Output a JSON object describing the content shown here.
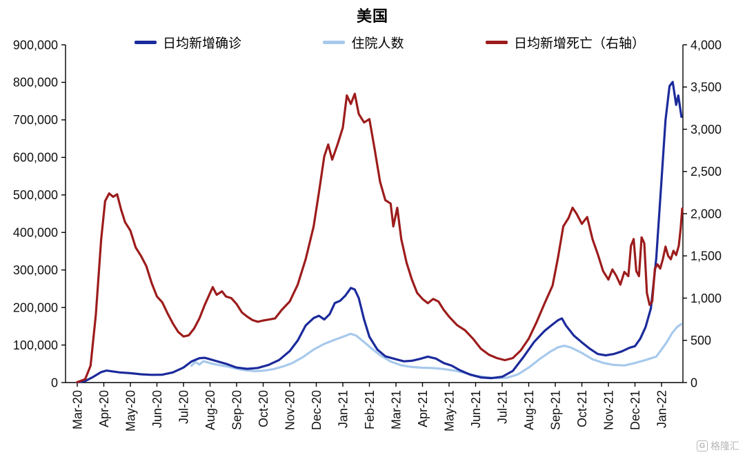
{
  "watermark": {
    "icon_letter": "G",
    "text": "格隆汇"
  },
  "chart_data": {
    "type": "line",
    "title": "美国",
    "grid": false,
    "legend_position": "top",
    "x_ticks": [
      "Mar-20",
      "Apr-20",
      "May-20",
      "Jun-20",
      "Jul-20",
      "Aug-20",
      "Sep-20",
      "Oct-20",
      "Nov-20",
      "Dec-20",
      "Jan-21",
      "Feb-21",
      "Mar-21",
      "Apr-21",
      "May-21",
      "Jun-21",
      "Jul-21",
      "Aug-21",
      "Sep-21",
      "Oct-21",
      "Nov-21",
      "Dec-21",
      "Jan-22"
    ],
    "left_axis": {
      "min": 0,
      "max": 900000,
      "step": 100000
    },
    "right_axis": {
      "min": 0,
      "max": 4000,
      "step": 500
    },
    "series": [
      {
        "name": "住院人数",
        "axis": "left",
        "color": "#a7c9ec",
        "points": [
          [
            4.3,
            45000
          ],
          [
            4.45,
            55000
          ],
          [
            4.6,
            48000
          ],
          [
            4.75,
            57000
          ],
          [
            4.9,
            54000
          ],
          [
            5.1,
            50000
          ],
          [
            5.4,
            46000
          ],
          [
            5.7,
            42000
          ],
          [
            6,
            37000
          ],
          [
            6.3,
            33000
          ],
          [
            6.7,
            30500
          ],
          [
            7,
            31500
          ],
          [
            7.4,
            36000
          ],
          [
            7.8,
            44000
          ],
          [
            8.1,
            52000
          ],
          [
            8.5,
            68000
          ],
          [
            8.9,
            88000
          ],
          [
            9.3,
            103000
          ],
          [
            9.7,
            114000
          ],
          [
            10,
            122000
          ],
          [
            10.3,
            130000
          ],
          [
            10.5,
            125000
          ],
          [
            10.8,
            108000
          ],
          [
            11.1,
            90000
          ],
          [
            11.4,
            73000
          ],
          [
            11.8,
            56000
          ],
          [
            12.2,
            46000
          ],
          [
            12.6,
            41500
          ],
          [
            13,
            39500
          ],
          [
            13.4,
            38500
          ],
          [
            13.8,
            36000
          ],
          [
            14.2,
            32000
          ],
          [
            14.6,
            25500
          ],
          [
            15,
            18500
          ],
          [
            15.4,
            14000
          ],
          [
            15.8,
            11800
          ],
          [
            16.2,
            13000
          ],
          [
            16.6,
            22000
          ],
          [
            17,
            40000
          ],
          [
            17.4,
            62000
          ],
          [
            17.8,
            82000
          ],
          [
            18.1,
            94000
          ],
          [
            18.35,
            98000
          ],
          [
            18.6,
            93000
          ],
          [
            19,
            79000
          ],
          [
            19.4,
            62000
          ],
          [
            19.8,
            52500
          ],
          [
            20.2,
            47000
          ],
          [
            20.6,
            45500
          ],
          [
            21,
            52000
          ],
          [
            21.4,
            60000
          ],
          [
            21.8,
            69000
          ],
          [
            22,
            88000
          ],
          [
            22.2,
            108000
          ],
          [
            22.4,
            132000
          ],
          [
            22.6,
            149000
          ],
          [
            22.75,
            156000
          ]
        ]
      },
      {
        "name": "日均新增确诊",
        "axis": "left",
        "color": "#1b2a9b",
        "points": [
          [
            0,
            800
          ],
          [
            0.3,
            4000
          ],
          [
            0.6,
            15000
          ],
          [
            0.9,
            28000
          ],
          [
            1.1,
            32000
          ],
          [
            1.3,
            30000
          ],
          [
            1.6,
            27000
          ],
          [
            2,
            25000
          ],
          [
            2.4,
            22000
          ],
          [
            2.8,
            20500
          ],
          [
            3.2,
            21000
          ],
          [
            3.6,
            27000
          ],
          [
            4,
            40000
          ],
          [
            4.3,
            56000
          ],
          [
            4.6,
            65000
          ],
          [
            4.8,
            66000
          ],
          [
            5,
            62000
          ],
          [
            5.3,
            56000
          ],
          [
            5.6,
            50000
          ],
          [
            6,
            40000
          ],
          [
            6.4,
            36500
          ],
          [
            6.8,
            39000
          ],
          [
            7.2,
            47000
          ],
          [
            7.6,
            60000
          ],
          [
            8,
            84000
          ],
          [
            8.3,
            112000
          ],
          [
            8.6,
            152000
          ],
          [
            8.9,
            172000
          ],
          [
            9.1,
            178000
          ],
          [
            9.3,
            168000
          ],
          [
            9.5,
            182000
          ],
          [
            9.7,
            212000
          ],
          [
            9.9,
            218000
          ],
          [
            10.1,
            232000
          ],
          [
            10.3,
            252000
          ],
          [
            10.45,
            248000
          ],
          [
            10.6,
            225000
          ],
          [
            10.8,
            168000
          ],
          [
            11,
            122000
          ],
          [
            11.3,
            88000
          ],
          [
            11.6,
            70000
          ],
          [
            12,
            62000
          ],
          [
            12.3,
            56500
          ],
          [
            12.6,
            58000
          ],
          [
            12.9,
            63000
          ],
          [
            13.2,
            69000
          ],
          [
            13.5,
            64000
          ],
          [
            13.8,
            52000
          ],
          [
            14.1,
            45000
          ],
          [
            14.4,
            33000
          ],
          [
            14.8,
            21000
          ],
          [
            15.2,
            13500
          ],
          [
            15.6,
            11800
          ],
          [
            16,
            15500
          ],
          [
            16.4,
            31000
          ],
          [
            16.8,
            68000
          ],
          [
            17.2,
            108000
          ],
          [
            17.6,
            138000
          ],
          [
            17.9,
            155000
          ],
          [
            18.1,
            166000
          ],
          [
            18.25,
            171000
          ],
          [
            18.4,
            152000
          ],
          [
            18.7,
            125000
          ],
          [
            19,
            107000
          ],
          [
            19.3,
            90000
          ],
          [
            19.6,
            76000
          ],
          [
            19.9,
            72500
          ],
          [
            20.2,
            76000
          ],
          [
            20.5,
            83000
          ],
          [
            20.8,
            93000
          ],
          [
            21,
            97000
          ],
          [
            21.2,
            117000
          ],
          [
            21.4,
            148000
          ],
          [
            21.6,
            198000
          ],
          [
            21.8,
            330000
          ],
          [
            22,
            540000
          ],
          [
            22.15,
            700000
          ],
          [
            22.3,
            790000
          ],
          [
            22.42,
            801000
          ],
          [
            22.55,
            740000
          ],
          [
            22.63,
            765000
          ],
          [
            22.75,
            708000
          ]
        ]
      },
      {
        "name": "日均新增死亡（右轴）",
        "axis": "right",
        "color": "#9d1c1c",
        "points": [
          [
            0,
            5
          ],
          [
            0.3,
            40
          ],
          [
            0.5,
            200
          ],
          [
            0.7,
            800
          ],
          [
            0.9,
            1700
          ],
          [
            1.05,
            2150
          ],
          [
            1.2,
            2240
          ],
          [
            1.35,
            2200
          ],
          [
            1.5,
            2230
          ],
          [
            1.65,
            2050
          ],
          [
            1.8,
            1900
          ],
          [
            2,
            1800
          ],
          [
            2.2,
            1600
          ],
          [
            2.4,
            1500
          ],
          [
            2.6,
            1380
          ],
          [
            2.8,
            1180
          ],
          [
            3,
            1020
          ],
          [
            3.2,
            950
          ],
          [
            3.4,
            820
          ],
          [
            3.6,
            700
          ],
          [
            3.8,
            600
          ],
          [
            4,
            545
          ],
          [
            4.2,
            560
          ],
          [
            4.4,
            640
          ],
          [
            4.6,
            760
          ],
          [
            4.8,
            920
          ],
          [
            5,
            1060
          ],
          [
            5.1,
            1130
          ],
          [
            5.25,
            1040
          ],
          [
            5.45,
            1080
          ],
          [
            5.6,
            1020
          ],
          [
            5.8,
            1000
          ],
          [
            6,
            930
          ],
          [
            6.2,
            830
          ],
          [
            6.4,
            780
          ],
          [
            6.6,
            740
          ],
          [
            6.8,
            720
          ],
          [
            7,
            735
          ],
          [
            7.2,
            745
          ],
          [
            7.45,
            760
          ],
          [
            7.7,
            860
          ],
          [
            8,
            960
          ],
          [
            8.3,
            1160
          ],
          [
            8.6,
            1460
          ],
          [
            8.9,
            1850
          ],
          [
            9.1,
            2250
          ],
          [
            9.3,
            2680
          ],
          [
            9.45,
            2820
          ],
          [
            9.6,
            2640
          ],
          [
            9.8,
            2820
          ],
          [
            10,
            3020
          ],
          [
            10.15,
            3400
          ],
          [
            10.3,
            3300
          ],
          [
            10.45,
            3420
          ],
          [
            10.6,
            3180
          ],
          [
            10.8,
            3080
          ],
          [
            11,
            3120
          ],
          [
            11.2,
            2760
          ],
          [
            11.4,
            2380
          ],
          [
            11.6,
            2160
          ],
          [
            11.8,
            2120
          ],
          [
            11.9,
            1850
          ],
          [
            12.05,
            2070
          ],
          [
            12.2,
            1700
          ],
          [
            12.4,
            1420
          ],
          [
            12.6,
            1220
          ],
          [
            12.8,
            1060
          ],
          [
            13,
            990
          ],
          [
            13.2,
            940
          ],
          [
            13.4,
            990
          ],
          [
            13.6,
            960
          ],
          [
            13.8,
            860
          ],
          [
            14,
            780
          ],
          [
            14.3,
            680
          ],
          [
            14.6,
            620
          ],
          [
            14.9,
            520
          ],
          [
            15.2,
            400
          ],
          [
            15.5,
            330
          ],
          [
            15.8,
            290
          ],
          [
            16.1,
            265
          ],
          [
            16.4,
            290
          ],
          [
            16.7,
            380
          ],
          [
            17,
            520
          ],
          [
            17.3,
            720
          ],
          [
            17.6,
            940
          ],
          [
            17.9,
            1150
          ],
          [
            18.1,
            1480
          ],
          [
            18.3,
            1850
          ],
          [
            18.5,
            1950
          ],
          [
            18.65,
            2070
          ],
          [
            18.8,
            2000
          ],
          [
            19,
            1880
          ],
          [
            19.2,
            1960
          ],
          [
            19.4,
            1700
          ],
          [
            19.6,
            1520
          ],
          [
            19.8,
            1320
          ],
          [
            20,
            1220
          ],
          [
            20.15,
            1340
          ],
          [
            20.3,
            1260
          ],
          [
            20.45,
            1160
          ],
          [
            20.6,
            1310
          ],
          [
            20.75,
            1260
          ],
          [
            20.85,
            1620
          ],
          [
            20.95,
            1700
          ],
          [
            21.05,
            1320
          ],
          [
            21.15,
            1260
          ],
          [
            21.25,
            1720
          ],
          [
            21.35,
            1650
          ],
          [
            21.45,
            1060
          ],
          [
            21.55,
            920
          ],
          [
            21.65,
            960
          ],
          [
            21.75,
            1350
          ],
          [
            21.85,
            1400
          ],
          [
            21.95,
            1350
          ],
          [
            22.05,
            1460
          ],
          [
            22.15,
            1610
          ],
          [
            22.25,
            1500
          ],
          [
            22.35,
            1460
          ],
          [
            22.45,
            1560
          ],
          [
            22.55,
            1510
          ],
          [
            22.65,
            1620
          ],
          [
            22.72,
            1820
          ],
          [
            22.78,
            2060
          ]
        ]
      }
    ]
  }
}
